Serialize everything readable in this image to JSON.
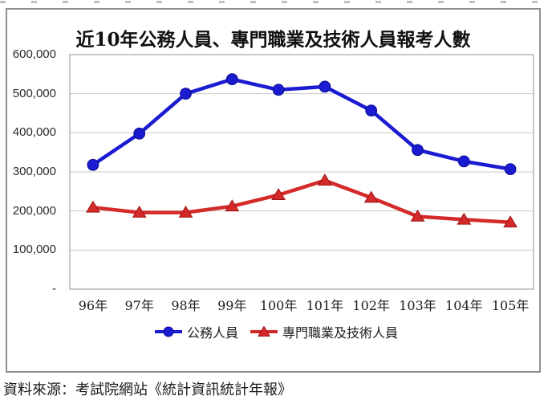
{
  "page": {
    "source_note": "資料來源：考試院網站《統計資訊統計年報》"
  },
  "chart_data": {
    "type": "line",
    "title": "近10年公務人員、專門職業及技術人員報考人數",
    "categories": [
      "96年",
      "97年",
      "98年",
      "99年",
      "100年",
      "101年",
      "102年",
      "103年",
      "104年",
      "105年"
    ],
    "series": [
      {
        "name": "公務人員",
        "marker": "circle",
        "color": "#1b1bd1",
        "marker_edge": "#10109b",
        "values": [
          318000,
          398000,
          500000,
          537000,
          510000,
          518000,
          457000,
          356000,
          327000,
          307000
        ]
      },
      {
        "name": "專門職業及技術人員",
        "marker": "triangle",
        "color": "#d42a2a",
        "marker_edge": "#9e1414",
        "values": [
          209000,
          196000,
          196000,
          212000,
          241000,
          278000,
          234000,
          186000,
          178000,
          171000
        ]
      }
    ],
    "xlabel": "",
    "ylabel": "",
    "ylim": [
      0,
      600000
    ],
    "y_ticks": [
      {
        "value": 600000,
        "label": "600,000"
      },
      {
        "value": 500000,
        "label": "500,000"
      },
      {
        "value": 400000,
        "label": "400,000"
      },
      {
        "value": 300000,
        "label": "300,000"
      },
      {
        "value": 200000,
        "label": "200,000"
      },
      {
        "value": 100000,
        "label": "100,000"
      },
      {
        "value": 0,
        "label": "-"
      }
    ],
    "grid": true,
    "gridline_color": "#c9c9c9",
    "plot_border_color": "#b2b2b2",
    "legend_position": "bottom"
  }
}
